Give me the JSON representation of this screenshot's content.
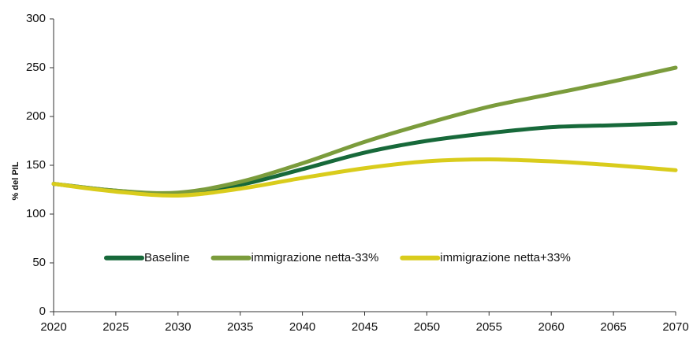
{
  "chart_data": {
    "type": "line",
    "y_label": "% del PIL",
    "x": [
      2020,
      2025,
      2030,
      2035,
      2040,
      2045,
      2050,
      2055,
      2060,
      2065,
      2070
    ],
    "series": [
      {
        "name": "Baseline",
        "color": "#17693a",
        "values": [
          131,
          124,
          121,
          130,
          146,
          163,
          175,
          183,
          189,
          191,
          193
        ]
      },
      {
        "name": "immigrazione netta-33%",
        "color": "#7b9c3c",
        "values": [
          131,
          124,
          122,
          133,
          152,
          174,
          193,
          210,
          223,
          236,
          250
        ]
      },
      {
        "name": "immigrazione netta+33%",
        "color": "#d9cc1c",
        "values": [
          131,
          123,
          119,
          126,
          137,
          147,
          154,
          156,
          154,
          150,
          145
        ]
      }
    ],
    "xlim": [
      2020,
      2070
    ],
    "xticks": [
      2020,
      2025,
      2030,
      2035,
      2040,
      2045,
      2050,
      2055,
      2060,
      2065,
      2070
    ],
    "ylim": [
      0,
      300
    ],
    "yticks": [
      0,
      50,
      100,
      150,
      200,
      250,
      300
    ],
    "grid": false,
    "legend": "lower center"
  }
}
